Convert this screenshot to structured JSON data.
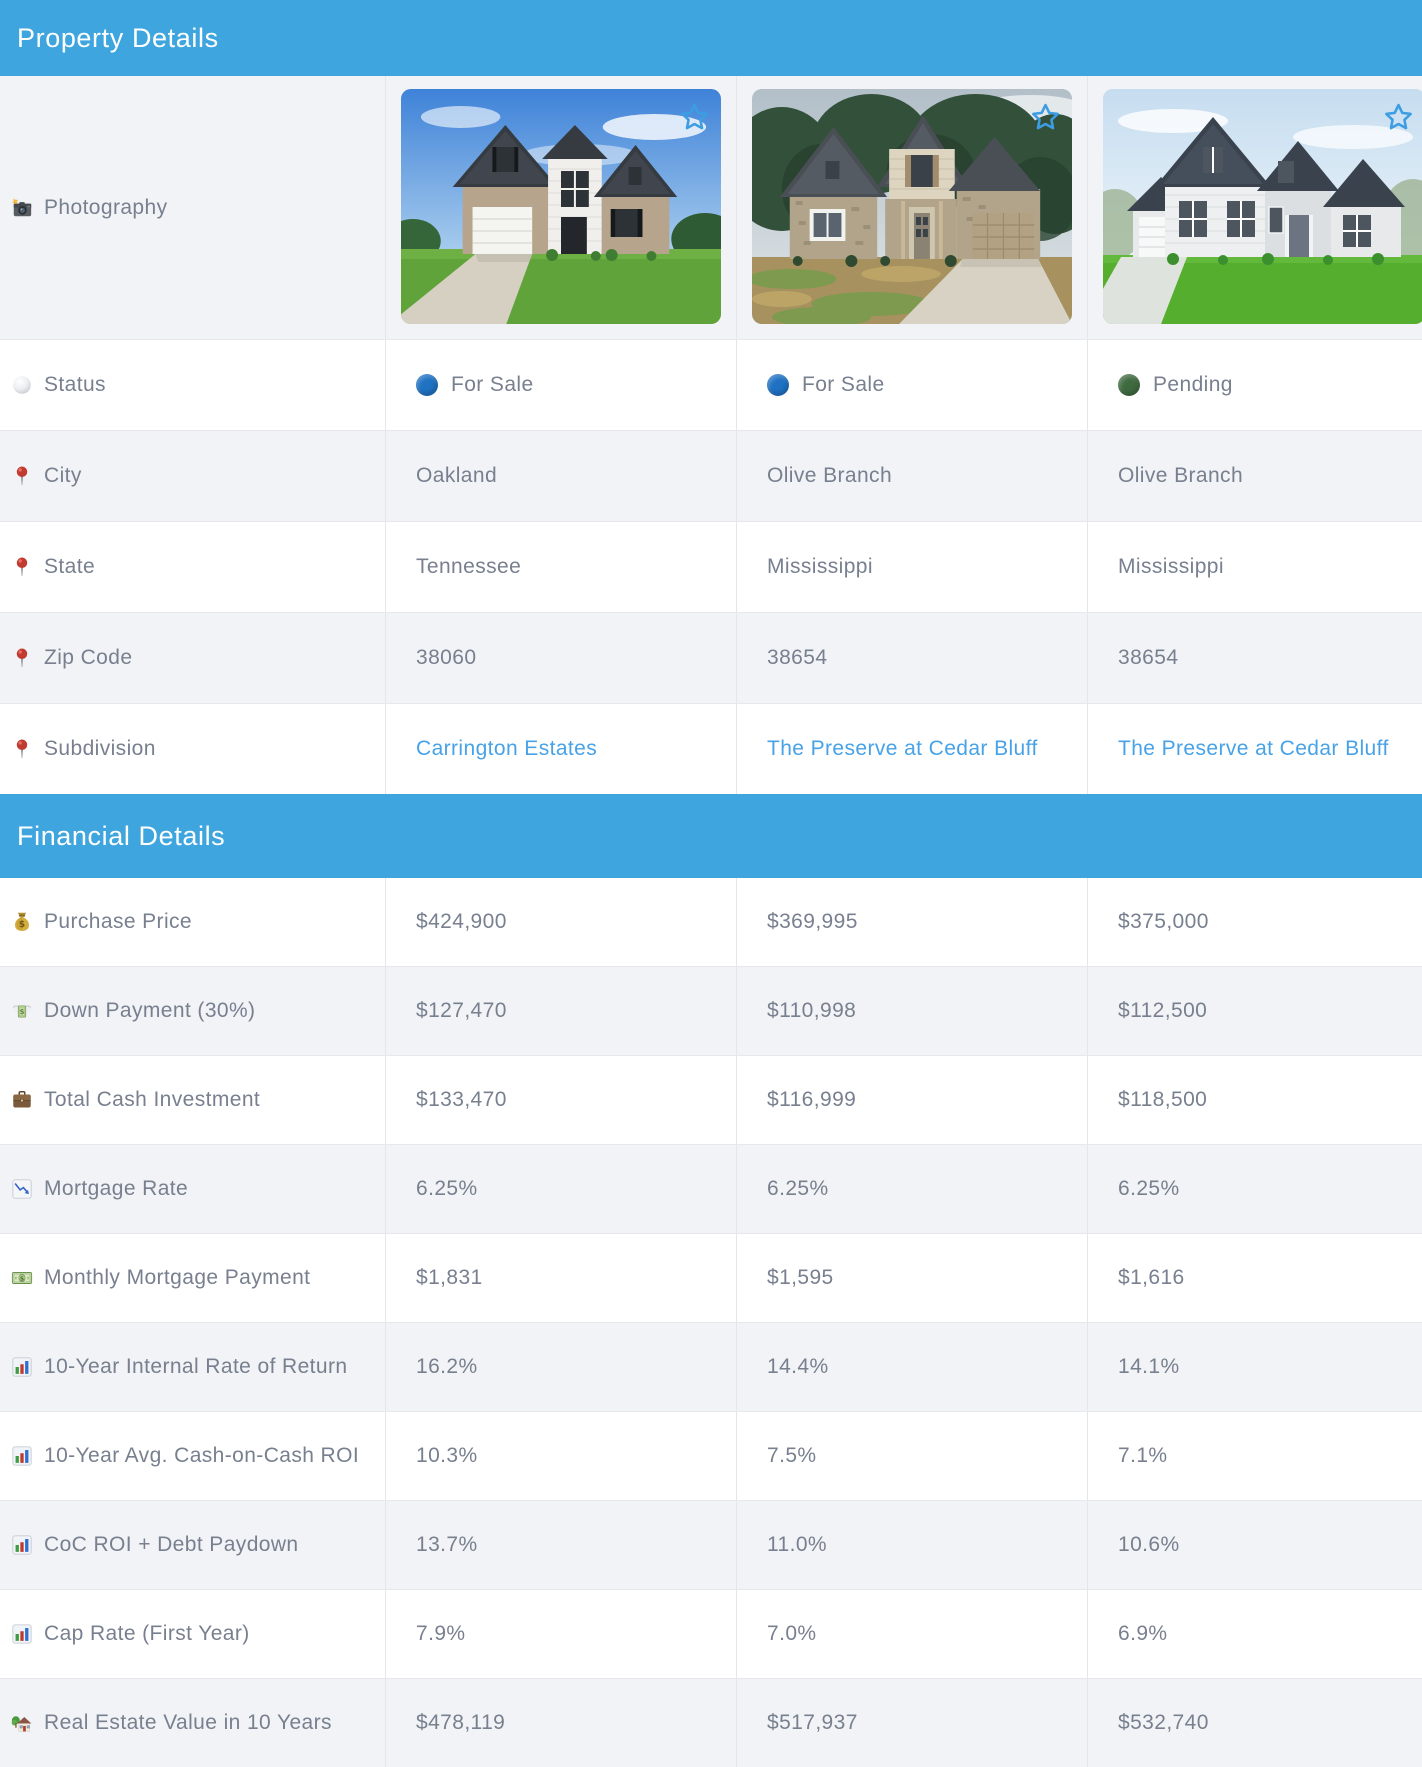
{
  "colors": {
    "accent": "#3fa5de",
    "link": "#48a2e7",
    "for_sale_dot": "#1f71c2",
    "pending_dot": "#3f6a40",
    "star": "#3d9de2"
  },
  "photos": [
    {
      "alt": "Two-story brick and white siding home with green lawn, blue sky"
    },
    {
      "alt": "Stone-front new construction home with driveway, overcast sky"
    },
    {
      "alt": "Architectural rendering of a white and gray two-story home"
    }
  ],
  "sections": [
    {
      "title": "Property Details",
      "rows": [
        {
          "icon": "camera-icon",
          "label": "Photography",
          "type": "photos"
        },
        {
          "icon": "status-sphere-icon",
          "label": "Status",
          "type": "status",
          "values": [
            {
              "text": "For Sale",
              "color": "#1f71c2"
            },
            {
              "text": "For Sale",
              "color": "#1f71c2"
            },
            {
              "text": "Pending",
              "color": "#3f6a40"
            }
          ]
        },
        {
          "icon": "pushpin-icon",
          "label": "City",
          "values": [
            "Oakland",
            "Olive Branch",
            "Olive Branch"
          ]
        },
        {
          "icon": "pushpin-icon",
          "label": "State",
          "values": [
            "Tennessee",
            "Mississippi",
            "Mississippi"
          ]
        },
        {
          "icon": "pushpin-icon",
          "label": "Zip Code",
          "values": [
            "38060",
            "38654",
            "38654"
          ]
        },
        {
          "icon": "pushpin-icon",
          "label": "Subdivision",
          "type": "link",
          "values": [
            "Carrington Estates",
            "The Preserve at Cedar Bluff",
            "The Preserve at Cedar Bluff"
          ]
        }
      ]
    },
    {
      "title": "Financial Details",
      "rows": [
        {
          "icon": "money-bag-icon",
          "label": "Purchase Price",
          "values": [
            "$424,900",
            "$369,995",
            "$375,000"
          ]
        },
        {
          "icon": "money-wings-icon",
          "label": "Down Payment (30%)",
          "values": [
            "$127,470",
            "$110,998",
            "$112,500"
          ]
        },
        {
          "icon": "briefcase-icon",
          "label": "Total Cash Investment",
          "values": [
            "$133,470",
            "$116,999",
            "$118,500"
          ]
        },
        {
          "icon": "chart-decreasing-icon",
          "label": "Mortgage Rate",
          "values": [
            "6.25%",
            "6.25%",
            "6.25%"
          ]
        },
        {
          "icon": "banknote-icon",
          "label": "Monthly Mortgage Payment",
          "values": [
            "$1,831",
            "$1,595",
            "$1,616"
          ]
        },
        {
          "icon": "bar-chart-icon",
          "label": "10-Year Internal Rate of Return",
          "values": [
            "16.2%",
            "14.4%",
            "14.1%"
          ]
        },
        {
          "icon": "bar-chart-icon",
          "label": "10-Year Avg. Cash-on-Cash ROI",
          "values": [
            "10.3%",
            "7.5%",
            "7.1%"
          ]
        },
        {
          "icon": "bar-chart-icon",
          "label": "CoC ROI + Debt Paydown",
          "values": [
            "13.7%",
            "11.0%",
            "10.6%"
          ]
        },
        {
          "icon": "bar-chart-icon",
          "label": "Cap Rate (First Year)",
          "values": [
            "7.9%",
            "7.0%",
            "6.9%"
          ]
        },
        {
          "icon": "house-garden-icon",
          "label": "Real Estate Value in 10 Years",
          "values": [
            "$478,119",
            "$517,937",
            "$532,740"
          ]
        }
      ]
    }
  ]
}
